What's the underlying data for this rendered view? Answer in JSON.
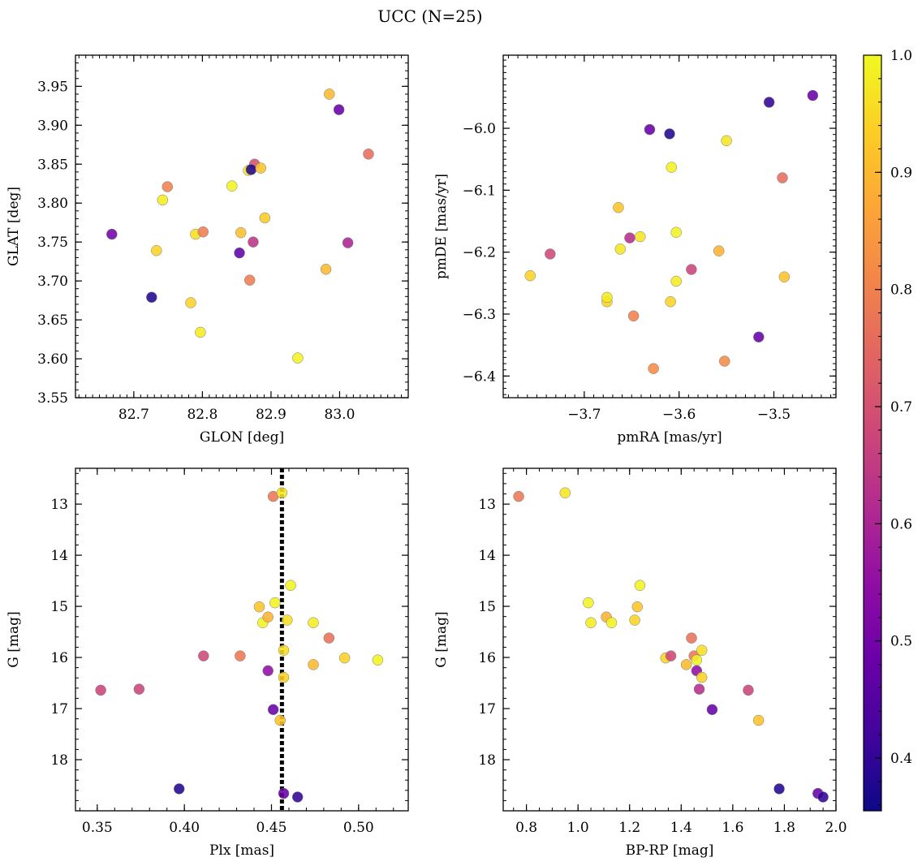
{
  "title": "UCC (N=25)",
  "colorbar": {
    "ticks": [
      "0.4",
      "0.5",
      "0.6",
      "0.7",
      "0.8",
      "0.9",
      "1.0"
    ],
    "range": [
      0.355,
      1.0
    ],
    "colormap": "plasma",
    "stops": [
      "#0d0887",
      "#41049d",
      "#6a00a8",
      "#8f0da4",
      "#b12a90",
      "#cc4778",
      "#e16462",
      "#f2844b",
      "#fca636",
      "#fcce25",
      "#f0f921"
    ]
  },
  "chart_data": [
    {
      "type": "scatter",
      "xlabel": "GLON [deg]",
      "ylabel": "GLAT [deg]",
      "xlim": [
        82.615,
        83.1
      ],
      "ylim": [
        3.55,
        3.99
      ],
      "xticks": [
        "82.7",
        "82.8",
        "82.9",
        "83.0"
      ],
      "yticks": [
        "3.55",
        "3.60",
        "3.65",
        "3.70",
        "3.75",
        "3.80",
        "3.85",
        "3.90",
        "3.95"
      ],
      "points": [
        {
          "x": 82.668,
          "y": 3.76,
          "c": 0.5
        },
        {
          "x": 82.726,
          "y": 3.679,
          "c": 0.38
        },
        {
          "x": 82.733,
          "y": 3.739,
          "c": 0.94
        },
        {
          "x": 82.742,
          "y": 3.804,
          "c": 0.98
        },
        {
          "x": 82.749,
          "y": 3.821,
          "c": 0.8
        },
        {
          "x": 82.783,
          "y": 3.672,
          "c": 0.94
        },
        {
          "x": 82.79,
          "y": 3.76,
          "c": 0.96
        },
        {
          "x": 82.797,
          "y": 3.634,
          "c": 0.98
        },
        {
          "x": 82.801,
          "y": 3.763,
          "c": 0.79
        },
        {
          "x": 82.843,
          "y": 3.822,
          "c": 0.99
        },
        {
          "x": 82.854,
          "y": 3.736,
          "c": 0.47
        },
        {
          "x": 82.856,
          "y": 3.762,
          "c": 0.91
        },
        {
          "x": 82.867,
          "y": 3.842,
          "c": 0.97
        },
        {
          "x": 82.869,
          "y": 3.701,
          "c": 0.79
        },
        {
          "x": 82.876,
          "y": 3.85,
          "c": 0.7
        },
        {
          "x": 82.874,
          "y": 3.75,
          "c": 0.64
        },
        {
          "x": 82.871,
          "y": 3.843,
          "c": 0.38
        },
        {
          "x": 82.885,
          "y": 3.845,
          "c": 0.92
        },
        {
          "x": 82.891,
          "y": 3.781,
          "c": 0.93
        },
        {
          "x": 82.939,
          "y": 3.601,
          "c": 0.99
        },
        {
          "x": 82.98,
          "y": 3.715,
          "c": 0.9
        },
        {
          "x": 82.985,
          "y": 3.94,
          "c": 0.9
        },
        {
          "x": 82.999,
          "y": 3.92,
          "c": 0.48
        },
        {
          "x": 83.012,
          "y": 3.749,
          "c": 0.6
        },
        {
          "x": 83.042,
          "y": 3.863,
          "c": 0.76
        }
      ]
    },
    {
      "type": "scatter",
      "xlabel": "pmRA [mas/yr]",
      "ylabel": "pmDE [mas/yr]",
      "xlim": [
        -3.7855,
        -3.4345
      ],
      "ylim": [
        -6.435,
        -5.882
      ],
      "xticks": [
        "−3.7",
        "−3.6",
        "−3.5"
      ],
      "yticks": [
        "−6.4",
        "−6.3",
        "−6.2",
        "−6.1",
        "−6.0"
      ],
      "points": [
        {
          "x": -3.757,
          "y": -6.238,
          "c": 0.94
        },
        {
          "x": -3.736,
          "y": -6.203,
          "c": 0.68
        },
        {
          "x": -3.676,
          "y": -6.28,
          "c": 0.94
        },
        {
          "x": -3.676,
          "y": -6.273,
          "c": 0.98
        },
        {
          "x": -3.664,
          "y": -6.128,
          "c": 0.92
        },
        {
          "x": -3.662,
          "y": -6.195,
          "c": 0.97
        },
        {
          "x": -3.652,
          "y": -6.177,
          "c": 0.62
        },
        {
          "x": -3.648,
          "y": -6.303,
          "c": 0.8
        },
        {
          "x": -3.641,
          "y": -6.175,
          "c": 0.97
        },
        {
          "x": -3.631,
          "y": -6.002,
          "c": 0.48
        },
        {
          "x": -3.627,
          "y": -6.388,
          "c": 0.82
        },
        {
          "x": -3.61,
          "y": -6.009,
          "c": 0.38
        },
        {
          "x": -3.609,
          "y": -6.28,
          "c": 0.94
        },
        {
          "x": -3.608,
          "y": -6.063,
          "c": 0.99
        },
        {
          "x": -3.603,
          "y": -6.168,
          "c": 0.99
        },
        {
          "x": -3.603,
          "y": -6.247,
          "c": 0.98
        },
        {
          "x": -3.587,
          "y": -6.228,
          "c": 0.67
        },
        {
          "x": -3.558,
          "y": -6.198,
          "c": 0.89
        },
        {
          "x": -3.552,
          "y": -6.376,
          "c": 0.82
        },
        {
          "x": -3.55,
          "y": -6.02,
          "c": 0.97
        },
        {
          "x": -3.516,
          "y": -6.337,
          "c": 0.48
        },
        {
          "x": -3.505,
          "y": -5.958,
          "c": 0.4
        },
        {
          "x": -3.491,
          "y": -6.08,
          "c": 0.76
        },
        {
          "x": -3.489,
          "y": -6.24,
          "c": 0.92
        },
        {
          "x": -3.459,
          "y": -5.947,
          "c": 0.48
        }
      ]
    },
    {
      "type": "scatter",
      "xlabel": "Plx [mas]",
      "ylabel": "G [mag]",
      "xlim": [
        0.3375,
        0.5285
      ],
      "ylim": [
        19.0,
        12.3
      ],
      "xticks": [
        "0.35",
        "0.40",
        "0.45",
        "0.50"
      ],
      "yticks": [
        "13",
        "14",
        "15",
        "16",
        "17",
        "18"
      ],
      "vline": 0.456,
      "points": [
        {
          "x": 0.352,
          "y": 16.64,
          "c": 0.67
        },
        {
          "x": 0.374,
          "y": 16.62,
          "c": 0.67
        },
        {
          "x": 0.397,
          "y": 18.57,
          "c": 0.38
        },
        {
          "x": 0.411,
          "y": 15.97,
          "c": 0.68
        },
        {
          "x": 0.432,
          "y": 15.97,
          "c": 0.78
        },
        {
          "x": 0.443,
          "y": 15.01,
          "c": 0.92
        },
        {
          "x": 0.445,
          "y": 15.32,
          "c": 0.99
        },
        {
          "x": 0.448,
          "y": 15.21,
          "c": 0.89
        },
        {
          "x": 0.448,
          "y": 16.26,
          "c": 0.55
        },
        {
          "x": 0.451,
          "y": 12.85,
          "c": 0.78
        },
        {
          "x": 0.451,
          "y": 17.02,
          "c": 0.48
        },
        {
          "x": 0.452,
          "y": 14.93,
          "c": 0.99
        },
        {
          "x": 0.455,
          "y": 17.23,
          "c": 0.92
        },
        {
          "x": 0.456,
          "y": 12.78,
          "c": 0.97
        },
        {
          "x": 0.457,
          "y": 15.86,
          "c": 0.96
        },
        {
          "x": 0.457,
          "y": 16.39,
          "c": 0.94
        },
        {
          "x": 0.457,
          "y": 18.66,
          "c": 0.48
        },
        {
          "x": 0.459,
          "y": 15.27,
          "c": 0.96
        },
        {
          "x": 0.461,
          "y": 14.59,
          "c": 0.99
        },
        {
          "x": 0.465,
          "y": 18.73,
          "c": 0.4
        },
        {
          "x": 0.474,
          "y": 15.32,
          "c": 0.98
        },
        {
          "x": 0.474,
          "y": 16.14,
          "c": 0.9
        },
        {
          "x": 0.483,
          "y": 15.62,
          "c": 0.77
        },
        {
          "x": 0.492,
          "y": 16.01,
          "c": 0.94
        },
        {
          "x": 0.511,
          "y": 16.05,
          "c": 0.99
        }
      ]
    },
    {
      "type": "scatter",
      "xlabel": "BP-RP [mag]",
      "ylabel": "G [mag]",
      "xlim": [
        0.71,
        2.0
      ],
      "ylim": [
        19.0,
        12.3
      ],
      "xticks": [
        "0.8",
        "1.0",
        "1.2",
        "1.4",
        "1.6",
        "1.8",
        "2.0"
      ],
      "yticks": [
        "13",
        "14",
        "15",
        "16",
        "17",
        "18"
      ],
      "points": [
        {
          "x": 0.77,
          "y": 12.85,
          "c": 0.78
        },
        {
          "x": 0.95,
          "y": 12.78,
          "c": 0.97
        },
        {
          "x": 1.04,
          "y": 14.93,
          "c": 0.99
        },
        {
          "x": 1.05,
          "y": 15.32,
          "c": 0.98
        },
        {
          "x": 1.11,
          "y": 15.21,
          "c": 0.89
        },
        {
          "x": 1.13,
          "y": 15.32,
          "c": 0.99
        },
        {
          "x": 1.22,
          "y": 15.27,
          "c": 0.94
        },
        {
          "x": 1.23,
          "y": 15.01,
          "c": 0.92
        },
        {
          "x": 1.24,
          "y": 14.59,
          "c": 0.99
        },
        {
          "x": 1.34,
          "y": 16.01,
          "c": 0.94
        },
        {
          "x": 1.36,
          "y": 15.97,
          "c": 0.68
        },
        {
          "x": 1.42,
          "y": 16.14,
          "c": 0.9
        },
        {
          "x": 1.44,
          "y": 15.62,
          "c": 0.77
        },
        {
          "x": 1.45,
          "y": 15.97,
          "c": 0.78
        },
        {
          "x": 1.46,
          "y": 16.05,
          "c": 0.99
        },
        {
          "x": 1.46,
          "y": 16.26,
          "c": 0.55
        },
        {
          "x": 1.47,
          "y": 16.62,
          "c": 0.62
        },
        {
          "x": 1.48,
          "y": 15.86,
          "c": 0.96
        },
        {
          "x": 1.48,
          "y": 16.39,
          "c": 0.94
        },
        {
          "x": 1.52,
          "y": 17.02,
          "c": 0.48
        },
        {
          "x": 1.66,
          "y": 16.64,
          "c": 0.67
        },
        {
          "x": 1.7,
          "y": 17.23,
          "c": 0.92
        },
        {
          "x": 1.78,
          "y": 18.57,
          "c": 0.38
        },
        {
          "x": 1.93,
          "y": 18.66,
          "c": 0.48
        },
        {
          "x": 1.95,
          "y": 18.73,
          "c": 0.4
        }
      ]
    }
  ]
}
